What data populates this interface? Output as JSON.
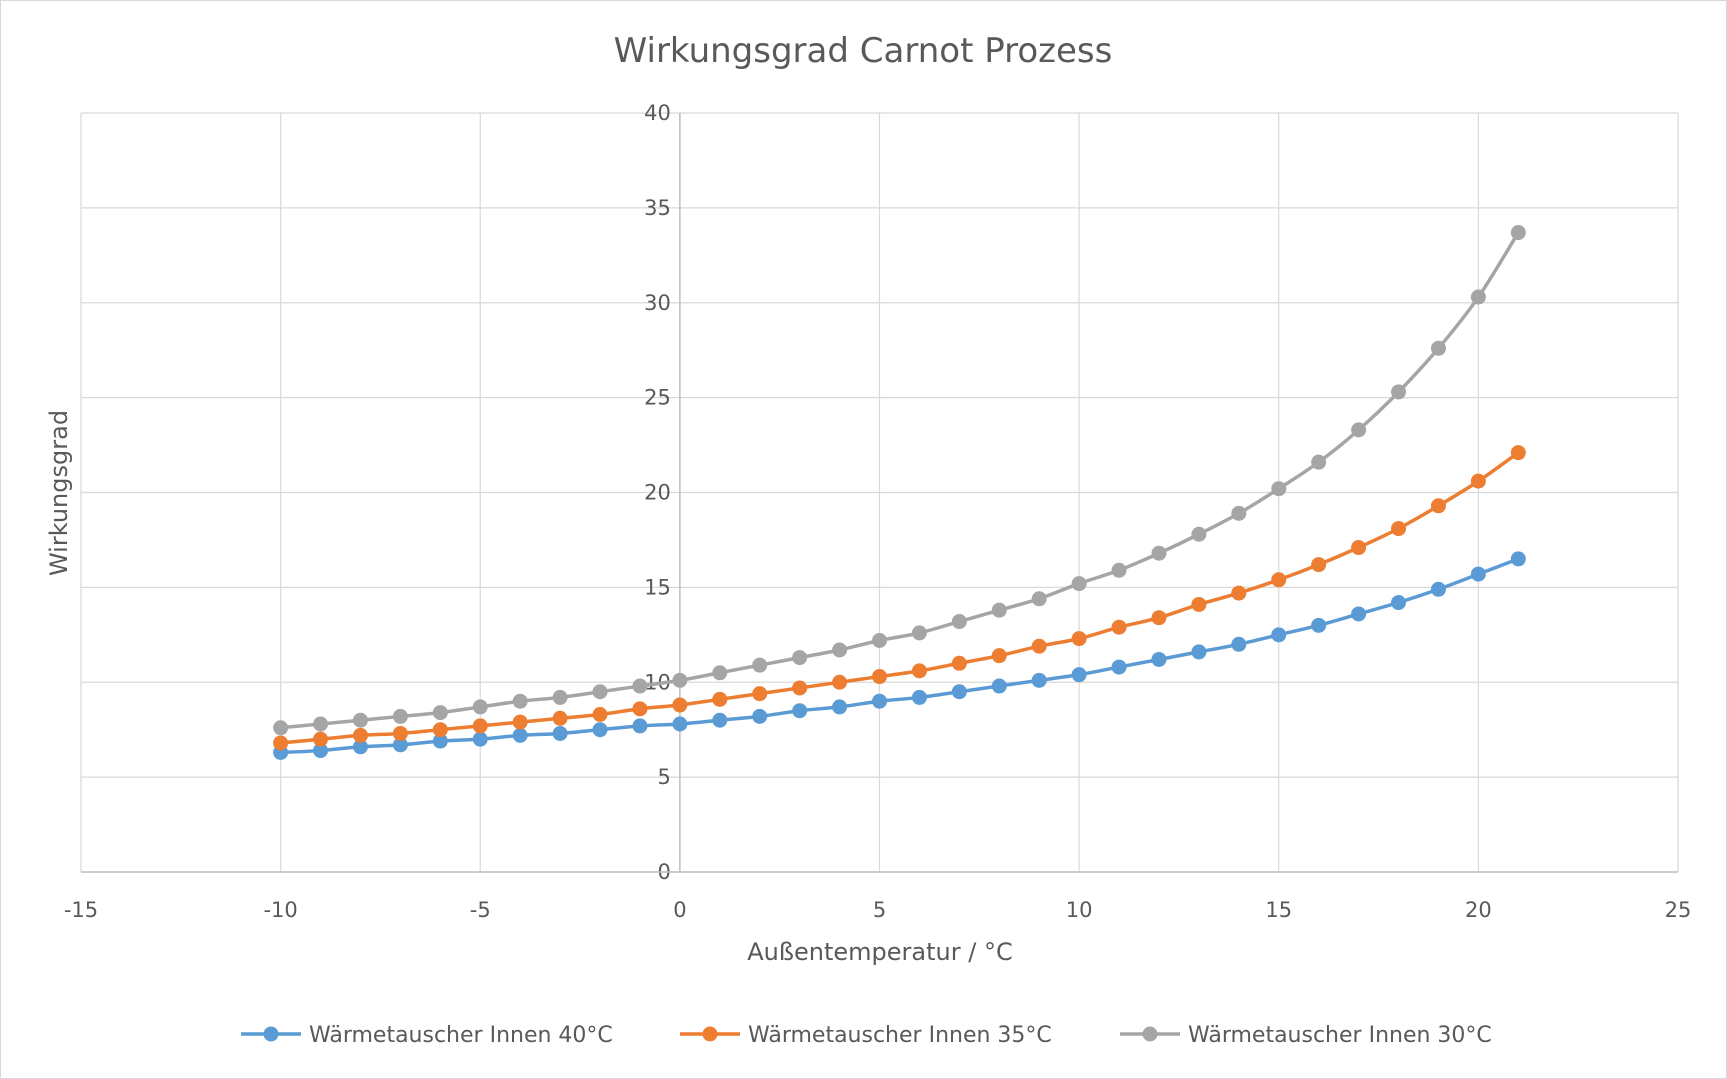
{
  "chart_data": {
    "type": "scatter",
    "title": "Wirkungsgrad Carnot Prozess",
    "xlabel": "Außentemperatur / °C",
    "ylabel": "Wirkungsgrad",
    "xlim": [
      -15,
      25
    ],
    "ylim": [
      0,
      40
    ],
    "xticks": [
      -15,
      -10,
      -5,
      0,
      5,
      10,
      15,
      20,
      25
    ],
    "yticks": [
      0,
      5,
      10,
      15,
      20,
      25,
      30,
      35,
      40
    ],
    "grid": true,
    "legend_position": "bottom",
    "x": [
      -10,
      -9,
      -8,
      -7,
      -6,
      -5,
      -4,
      -3,
      -2,
      -1,
      0,
      1,
      2,
      3,
      4,
      5,
      6,
      7,
      8,
      9,
      10,
      11,
      12,
      13,
      14,
      15,
      16,
      17,
      18,
      19,
      20,
      21
    ],
    "series": [
      {
        "name": "Wärmetauscher Innen 40°C",
        "color": "#5b9bd5",
        "values": [
          6.3,
          6.4,
          6.6,
          6.7,
          6.9,
          7.0,
          7.2,
          7.3,
          7.5,
          7.7,
          7.8,
          8.0,
          8.2,
          8.5,
          8.7,
          9.0,
          9.2,
          9.5,
          9.8,
          10.1,
          10.4,
          10.8,
          11.2,
          11.6,
          12.0,
          12.5,
          13.0,
          13.6,
          14.2,
          14.9,
          15.7,
          16.5
        ]
      },
      {
        "name": "Wärmetauscher Innen 35°C",
        "color": "#ed7d31",
        "values": [
          6.8,
          7.0,
          7.2,
          7.3,
          7.5,
          7.7,
          7.9,
          8.1,
          8.3,
          8.6,
          8.8,
          9.1,
          9.4,
          9.7,
          10.0,
          10.3,
          10.6,
          11.0,
          11.4,
          11.9,
          12.3,
          12.9,
          13.4,
          14.1,
          14.7,
          15.4,
          16.2,
          17.1,
          18.1,
          19.3,
          20.6,
          22.1
        ]
      },
      {
        "name": "Wärmetauscher Innen 30°C",
        "color": "#a5a5a5",
        "values": [
          7.6,
          7.8,
          8.0,
          8.2,
          8.4,
          8.7,
          9.0,
          9.2,
          9.5,
          9.8,
          10.1,
          10.5,
          10.9,
          11.3,
          11.7,
          12.2,
          12.6,
          13.2,
          13.8,
          14.4,
          15.2,
          15.9,
          16.8,
          17.8,
          18.9,
          20.2,
          21.6,
          23.3,
          25.3,
          27.6,
          30.3,
          33.7
        ]
      }
    ]
  }
}
